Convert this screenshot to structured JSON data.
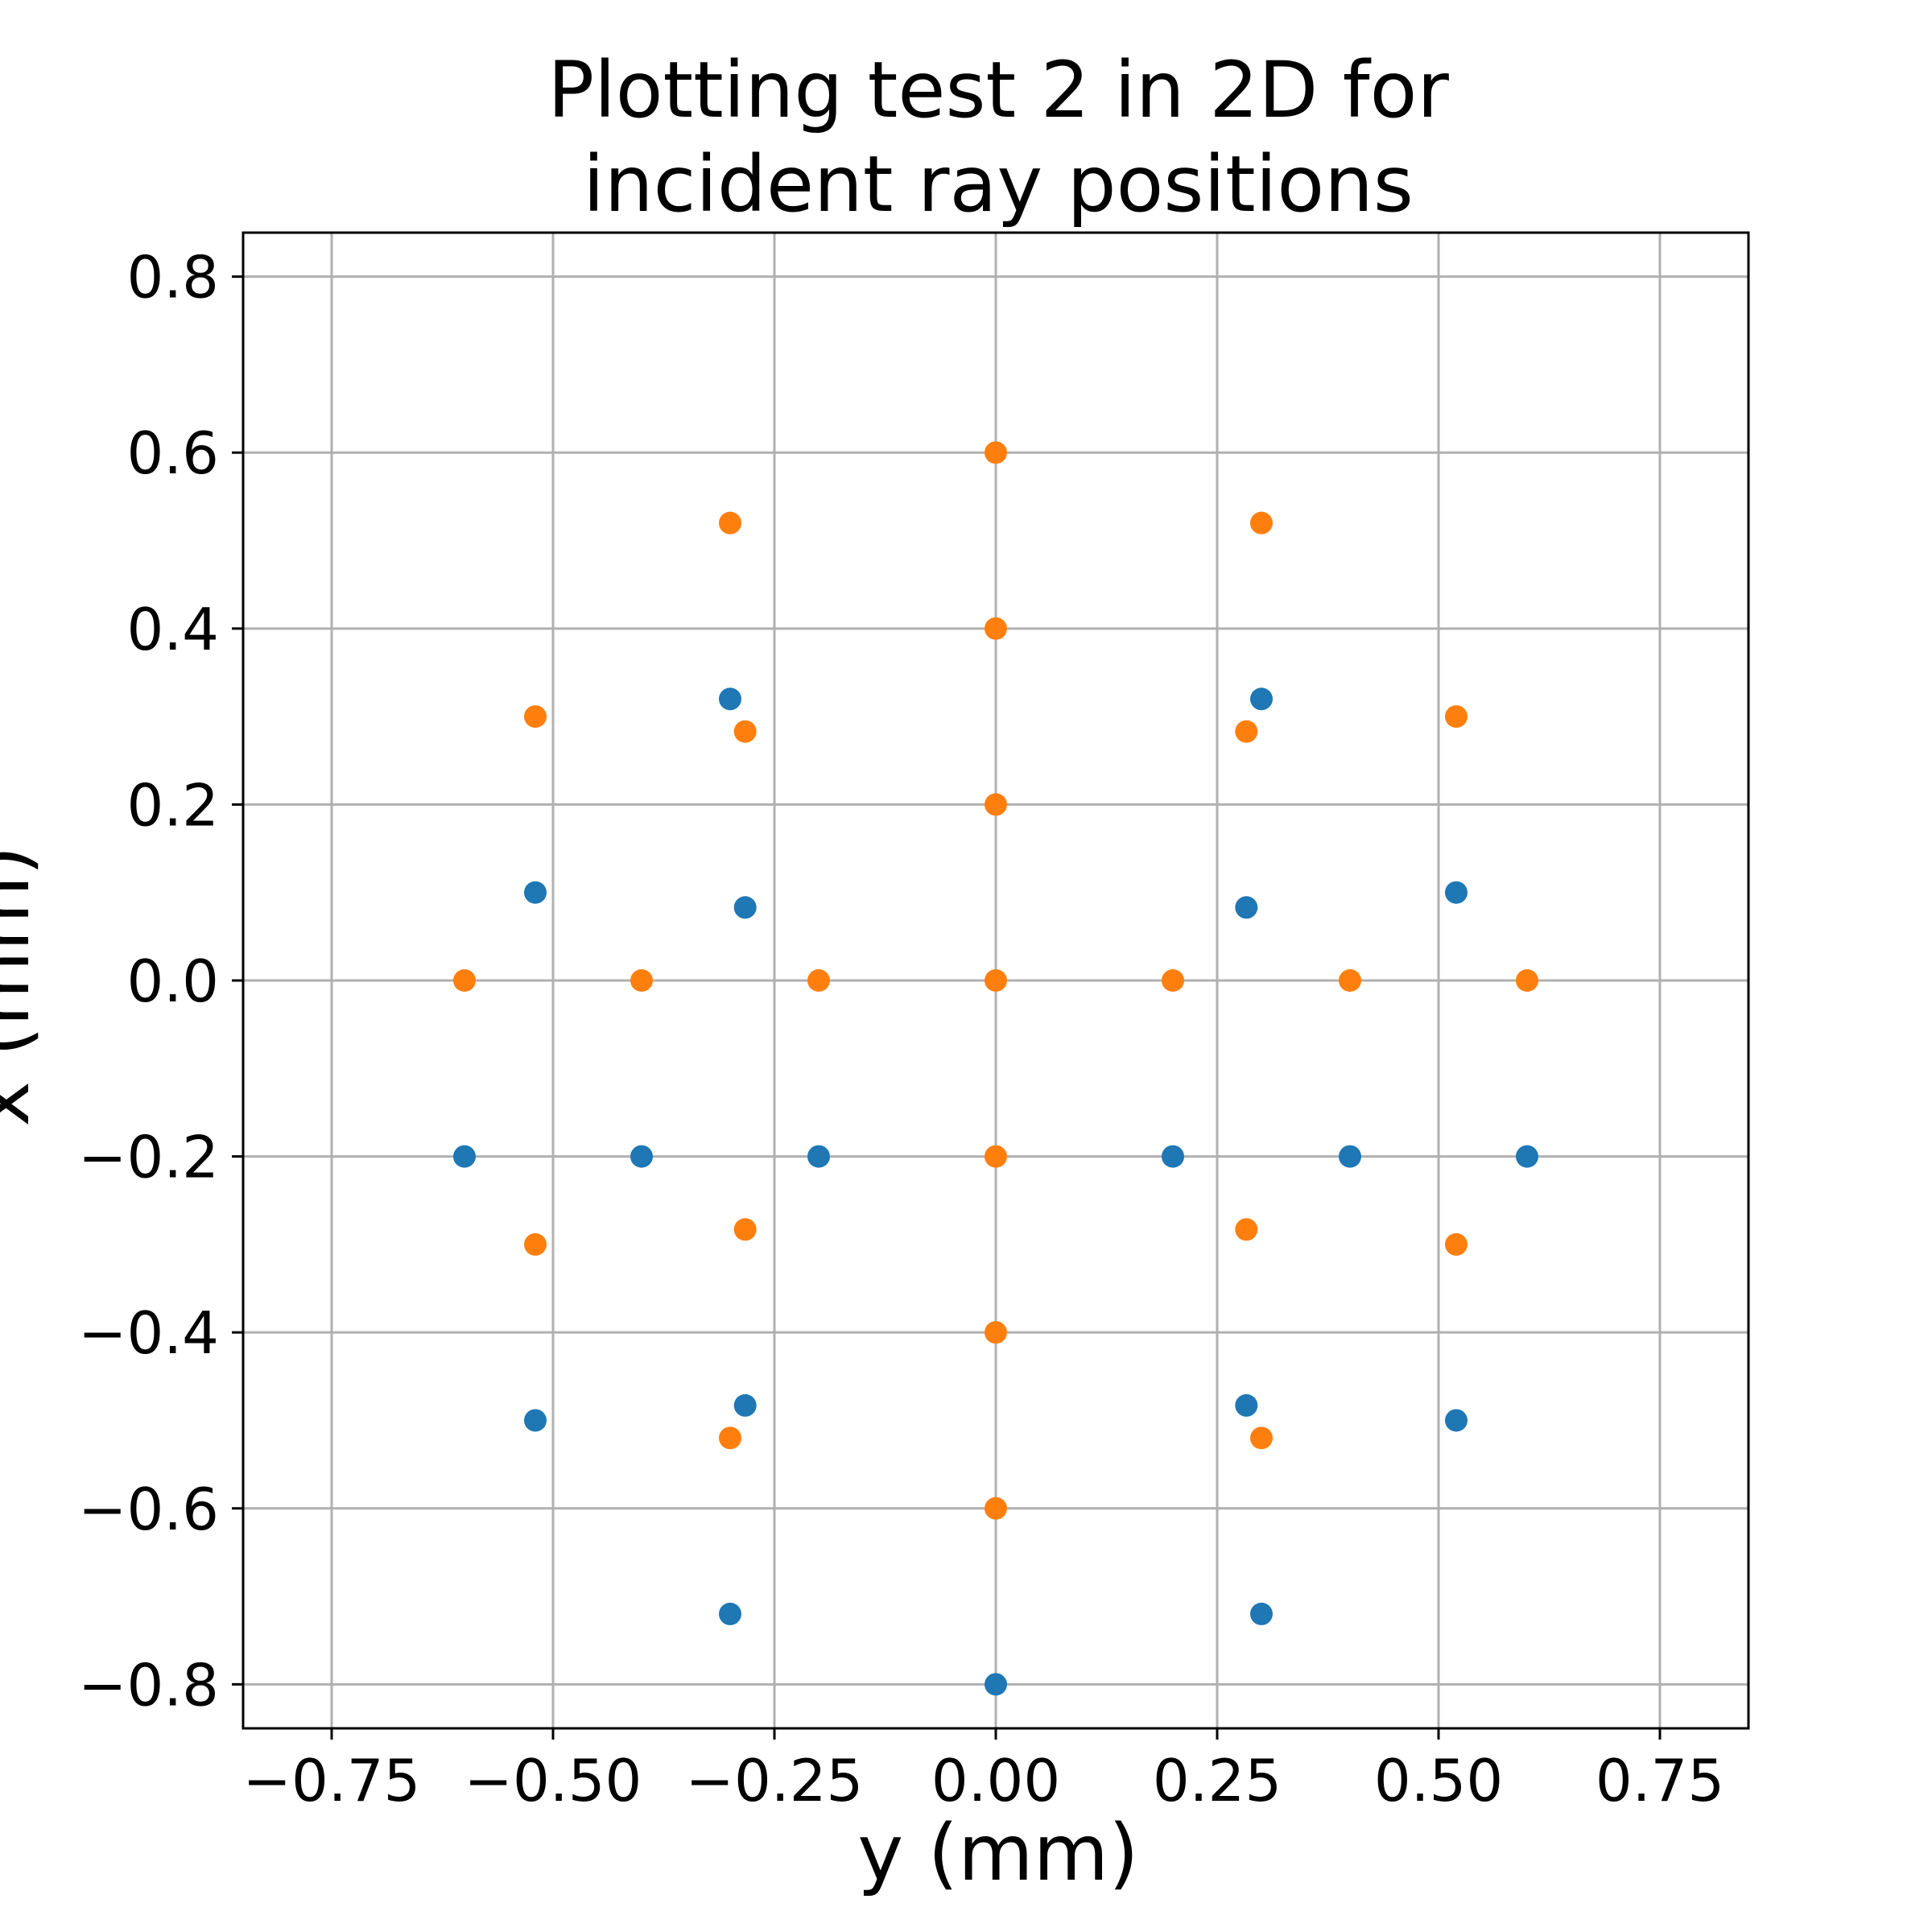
{
  "chart_data": {
    "type": "scatter",
    "title_lines": [
      "Plotting test 2 in 2D for",
      "incident ray positions"
    ],
    "xlabel": "y (mm)",
    "ylabel": "x (mm)",
    "xlim": [
      -0.85,
      0.85
    ],
    "ylim": [
      -0.85,
      0.85
    ],
    "xticks": [
      -0.75,
      -0.5,
      -0.25,
      0.0,
      0.25,
      0.5,
      0.75
    ],
    "xtick_labels": [
      "−0.75",
      "−0.50",
      "−0.25",
      "0.00",
      "0.25",
      "0.50",
      "0.75"
    ],
    "yticks": [
      -0.8,
      -0.6,
      -0.4,
      -0.2,
      0.0,
      0.2,
      0.4,
      0.6,
      0.8
    ],
    "ytick_labels": [
      "−0.8",
      "−0.6",
      "−0.4",
      "−0.2",
      "0.0",
      "0.2",
      "0.4",
      "0.6",
      "0.8"
    ],
    "grid": true,
    "series": [
      {
        "color": "#1f77b4",
        "points": [
          [
            -0.6,
            -0.2
          ],
          [
            -0.4,
            -0.2
          ],
          [
            -0.2,
            -0.2
          ],
          [
            0.2,
            -0.2
          ],
          [
            0.4,
            -0.2
          ],
          [
            0.6,
            -0.2
          ],
          [
            -0.52,
            0.1
          ],
          [
            -0.283,
            0.083
          ],
          [
            0.283,
            0.083
          ],
          [
            0.52,
            0.1
          ],
          [
            -0.3,
            0.32
          ],
          [
            0.3,
            0.32
          ],
          [
            -0.52,
            -0.5
          ],
          [
            -0.283,
            -0.483
          ],
          [
            0.283,
            -0.483
          ],
          [
            0.52,
            -0.5
          ],
          [
            -0.3,
            -0.72
          ],
          [
            0.3,
            -0.72
          ],
          [
            0.0,
            -0.8
          ]
        ]
      },
      {
        "color": "#ff7f0e",
        "points": [
          [
            -0.6,
            0.0
          ],
          [
            -0.4,
            0.0
          ],
          [
            -0.2,
            0.0
          ],
          [
            0.0,
            0.0
          ],
          [
            0.2,
            0.0
          ],
          [
            0.4,
            0.0
          ],
          [
            0.6,
            0.0
          ],
          [
            0.0,
            0.6
          ],
          [
            0.0,
            0.4
          ],
          [
            0.0,
            0.2
          ],
          [
            0.0,
            -0.2
          ],
          [
            0.0,
            -0.4
          ],
          [
            0.0,
            -0.6
          ],
          [
            -0.3,
            0.52
          ],
          [
            0.3,
            0.52
          ],
          [
            -0.52,
            0.3
          ],
          [
            0.52,
            0.3
          ],
          [
            -0.283,
            0.283
          ],
          [
            0.283,
            0.283
          ],
          [
            -0.283,
            -0.283
          ],
          [
            0.283,
            -0.283
          ],
          [
            -0.52,
            -0.3
          ],
          [
            0.52,
            -0.3
          ],
          [
            -0.3,
            -0.52
          ],
          [
            0.3,
            -0.52
          ]
        ]
      }
    ]
  }
}
